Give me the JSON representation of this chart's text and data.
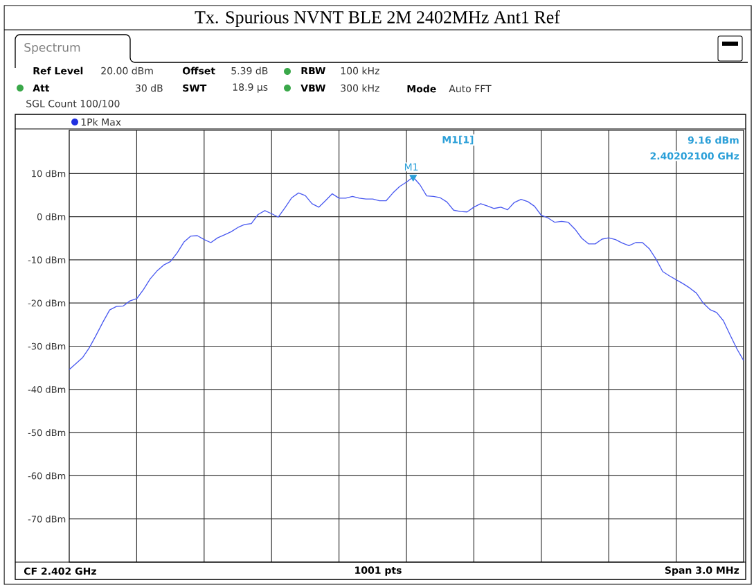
{
  "chart_data": {
    "type": "line",
    "title": "Tx. Spurious NVNT BLE 2M 2402MHz Ant1 Ref",
    "annotations": [
      "Spectrum",
      "Ref Level",
      "20.00 dBm",
      "Offset",
      "5.39 dB",
      "RBW",
      "100 kHz",
      "Att",
      "30 dB",
      "SWT",
      "18.9 µs",
      "VBW",
      "300 kHz",
      "Mode",
      "Auto FFT",
      "SGL Count 100/100",
      "1Pk Max",
      "M1[1]",
      "9.16 dBm",
      "2.40202100 GHz",
      "CF 2.402 GHz",
      "1001 pts",
      "Span 3.0 MHz",
      {
        "text": "M1",
        "y": 9.16
      }
    ],
    "categories": [
      null,
      null,
      null,
      null,
      null,
      null,
      null,
      null,
      null,
      null,
      null,
      null,
      null,
      null,
      null,
      null,
      null,
      null,
      null,
      null,
      null,
      null,
      null,
      null,
      null,
      null,
      null,
      null,
      null,
      null,
      null,
      null,
      null,
      null,
      null,
      null,
      null,
      null,
      null,
      null,
      null,
      null,
      null,
      null,
      null,
      null,
      null,
      null,
      null,
      null,
      null,
      null,
      null,
      null,
      null,
      null,
      null,
      null,
      null,
      null,
      null,
      null,
      null,
      null,
      null,
      null,
      null,
      null,
      null,
      null,
      null,
      null,
      null,
      null,
      null,
      null,
      null,
      null,
      null,
      null,
      null,
      null,
      null,
      null,
      null,
      null,
      null,
      null,
      null,
      null,
      null,
      null,
      null,
      null,
      null,
      null,
      null,
      null,
      null,
      null,
      null
    ],
    "series": [
      {
        "color": "#4a5af0",
        "values": [
          -35.4,
          -34.0,
          -32.6,
          -30.3,
          -27.4,
          -24.4,
          -21.6,
          -20.8,
          -20.7,
          -19.5,
          -19.0,
          -16.9,
          -14.4,
          -12.6,
          -11.2,
          -10.4,
          -8.4,
          -5.9,
          -4.5,
          -4.4,
          -5.3,
          -6.0,
          -4.9,
          -4.2,
          -3.5,
          -2.5,
          -1.8,
          -1.6,
          0.5,
          1.4,
          0.7,
          -0.1,
          2.1,
          4.4,
          5.5,
          4.9,
          3.0,
          2.2,
          3.7,
          5.3,
          4.3,
          4.3,
          4.7,
          4.3,
          4.1,
          4.1,
          3.7,
          3.7,
          5.5,
          7.0,
          8.0,
          9.16,
          7.4,
          4.8,
          4.7,
          4.4,
          3.4,
          1.5,
          1.2,
          1.1,
          2.2,
          3.0,
          2.5,
          1.9,
          2.2,
          1.6,
          3.3,
          4.0,
          3.5,
          2.4,
          0.3,
          -0.3,
          -1.3,
          -1.1,
          -1.3,
          -2.9,
          -5.0,
          -6.3,
          -6.3,
          -5.2,
          -4.9,
          -5.3,
          -6.1,
          -6.7,
          -6.0,
          -6.0,
          -7.4,
          -9.8,
          -12.7,
          -13.7,
          -14.6,
          -15.5,
          -16.5,
          -17.7,
          -20.0,
          -21.5,
          -22.2,
          -24.1,
          -27.4,
          -30.6,
          -33.3
        ]
      },
      {
        "type": "scatter",
        "marker": "triangle",
        "color": "#2a9fd8",
        "values": [
          null,
          null,
          null,
          null,
          null,
          null,
          null,
          null,
          null,
          null,
          null,
          null,
          null,
          null,
          null,
          null,
          null,
          null,
          null,
          null,
          null,
          null,
          null,
          null,
          null,
          null,
          null,
          null,
          null,
          null,
          null,
          null,
          null,
          null,
          null,
          null,
          null,
          null,
          null,
          null,
          null,
          null,
          null,
          null,
          null,
          null,
          null,
          null,
          null,
          null,
          null,
          9.16,
          null,
          null,
          null,
          null,
          null,
          null,
          null,
          null,
          null,
          null,
          null,
          null,
          null,
          null,
          null,
          null,
          null,
          null,
          null,
          null,
          null,
          null,
          null,
          null,
          null,
          null,
          null,
          null,
          null,
          null,
          null,
          null,
          null,
          null,
          null,
          null,
          null,
          null,
          null,
          null,
          null,
          null,
          null,
          null,
          null,
          null,
          null,
          null,
          null
        ]
      }
    ],
    "ylim": [
      -80,
      20
    ],
    "yticks": [
      {
        "value": -70,
        "label": "-70 dBm"
      },
      {
        "value": -60,
        "label": "-60 dBm"
      },
      {
        "value": -50,
        "label": "-50 dBm"
      },
      {
        "value": -40,
        "label": "-40 dBm"
      },
      {
        "value": -30,
        "label": "-30 dBm"
      },
      {
        "value": -20,
        "label": "-20 dBm"
      },
      {
        "value": -10,
        "label": "-10 dBm"
      },
      {
        "value": 0,
        "label": "0 dBm"
      },
      {
        "value": 10,
        "label": "10 dBm"
      }
    ],
    "grid": true,
    "tick_labels": "y"
  }
}
